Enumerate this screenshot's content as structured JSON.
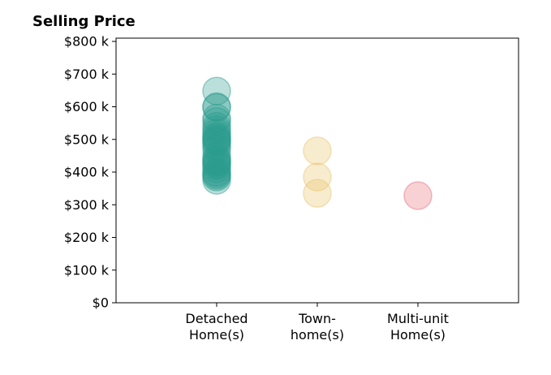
{
  "chart_data": {
    "type": "scatter",
    "title": "Selling Price",
    "xlabel": "",
    "ylabel": "",
    "categories": [
      [
        "Detached",
        "Home(s)"
      ],
      [
        "Town-",
        "home(s)"
      ],
      [
        "Multi-unit",
        "Home(s)"
      ]
    ],
    "ylim": [
      0,
      810000
    ],
    "yticks": [
      {
        "value": 0,
        "label": "$0"
      },
      {
        "value": 100000,
        "label": "$100 k"
      },
      {
        "value": 200000,
        "label": "$200 k"
      },
      {
        "value": 300000,
        "label": "$300 k"
      },
      {
        "value": 400000,
        "label": "$400 k"
      },
      {
        "value": 500000,
        "label": "$500 k"
      },
      {
        "value": 600000,
        "label": "$600 k"
      },
      {
        "value": 700000,
        "label": "$700 k"
      },
      {
        "value": 800000,
        "label": "$800 k"
      }
    ],
    "grid": false,
    "series": [
      {
        "category": 0,
        "color": "#2a9d8f",
        "values": [
          648000,
          600000,
          598000,
          565000,
          555000,
          540000,
          530000,
          520000,
          510000,
          505000,
          500000,
          495000,
          490000,
          480000,
          470000,
          450000,
          440000,
          435000,
          430000,
          425000,
          420000,
          410000,
          400000,
          395000,
          390000,
          385000,
          375000
        ]
      },
      {
        "category": 1,
        "color": "#e9c46a",
        "values": [
          465000,
          385000,
          335000
        ]
      },
      {
        "category": 2,
        "color": "#e76f7a",
        "values": [
          328000
        ]
      }
    ]
  }
}
